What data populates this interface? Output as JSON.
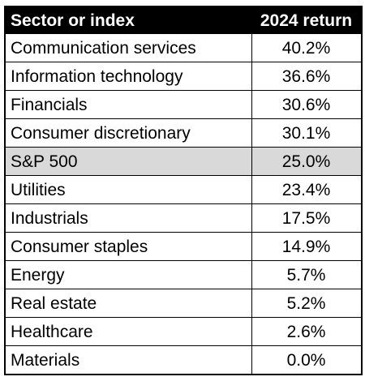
{
  "chart_data": {
    "type": "table",
    "columns": [
      "Sector or index",
      "2024 return"
    ],
    "rows": [
      {
        "label": "Communication services",
        "value": "40.2%",
        "highlight": false
      },
      {
        "label": "Information technology",
        "value": "36.6%",
        "highlight": false
      },
      {
        "label": "Financials",
        "value": "30.6%",
        "highlight": false
      },
      {
        "label": "Consumer discretionary",
        "value": "30.1%",
        "highlight": false
      },
      {
        "label": "S&P 500",
        "value": "25.0%",
        "highlight": true
      },
      {
        "label": "Utilities",
        "value": "23.4%",
        "highlight": false
      },
      {
        "label": "Industrials",
        "value": "17.5%",
        "highlight": false
      },
      {
        "label": "Consumer staples",
        "value": "14.9%",
        "highlight": false
      },
      {
        "label": "Energy",
        "value": "5.7%",
        "highlight": false
      },
      {
        "label": "Real estate",
        "value": "5.2%",
        "highlight": false
      },
      {
        "label": "Healthcare",
        "value": "2.6%",
        "highlight": false
      },
      {
        "label": "Materials",
        "value": "0.0%",
        "highlight": false
      }
    ]
  },
  "colors": {
    "header_bg": "#000000",
    "header_text": "#ffffff",
    "highlight_bg": "#d9d9d9",
    "border": "#000000"
  }
}
